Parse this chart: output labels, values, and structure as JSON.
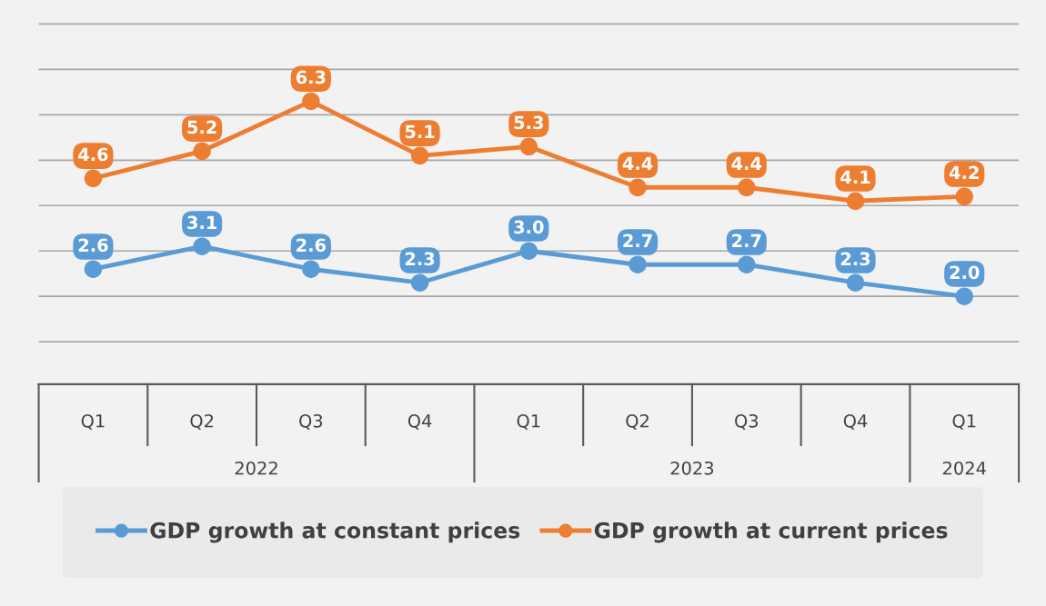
{
  "chart_data": {
    "type": "line",
    "categories": [
      "Q1",
      "Q2",
      "Q3",
      "Q4",
      "Q1",
      "Q2",
      "Q3",
      "Q4",
      "Q1"
    ],
    "annotations": [
      "2022",
      "2023",
      "2024"
    ],
    "series": [
      {
        "name": "GDP growth at constant prices",
        "color": "#5b9bd5",
        "values": [
          2.6,
          3.1,
          2.6,
          2.3,
          3.0,
          2.7,
          2.7,
          2.3,
          2.0
        ],
        "value_labels": [
          "2.6",
          "3.1",
          "2.6",
          "2.3",
          "3.0",
          "2.7",
          "2.7",
          "2.3",
          "2.0"
        ]
      },
      {
        "name": "GDP growth at current prices",
        "color": "#ed7d31",
        "values": [
          4.6,
          5.2,
          6.3,
          5.1,
          5.3,
          4.4,
          4.4,
          4.1,
          4.2
        ],
        "value_labels": [
          "4.6",
          "5.2",
          "6.3",
          "5.1",
          "5.3",
          "4.4",
          "4.4",
          "4.1",
          "4.2"
        ]
      }
    ],
    "tick_labels": "x",
    "grid": "y",
    "legend": "bottom",
    "marker": "circle",
    "line_style": "solid"
  }
}
